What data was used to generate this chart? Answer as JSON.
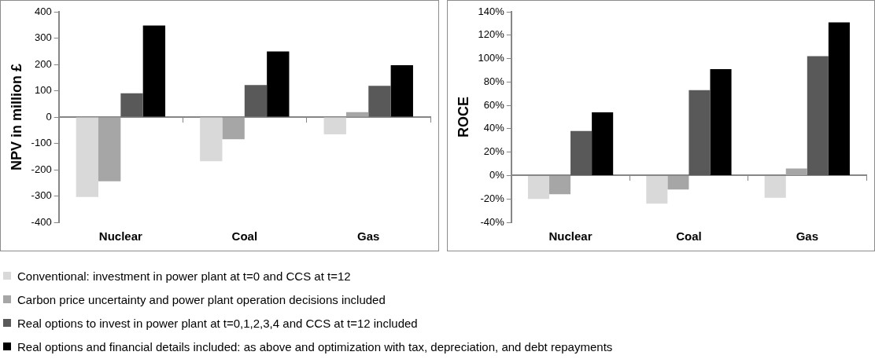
{
  "chart_data": [
    {
      "type": "bar",
      "ylabel": "NPV in million £",
      "categories": [
        "Nuclear",
        "Coal",
        "Gas"
      ],
      "ylim": [
        -400,
        400
      ],
      "yticks": [
        -400,
        -300,
        -200,
        -100,
        0,
        100,
        200,
        300,
        400
      ],
      "legend": "bottom",
      "series": [
        {
          "name": "Conventional: investment in power plant at t=0 and CCS at t=12",
          "color": "#d9d9d9",
          "values": [
            -304,
            -168,
            -66
          ]
        },
        {
          "name": "Carbon price uncertainty and power plant operation decisions included",
          "color": "#a6a6a6",
          "values": [
            -244,
            -84,
            19
          ]
        },
        {
          "name": "Real options to invest in power plant at t=0,1,2,3,4 and CCS at t=12 included",
          "color": "#595959",
          "values": [
            90,
            122,
            119
          ]
        },
        {
          "name": "Real options and financial details included: as above and optimization with tax, depreciation, and debt repayments",
          "color": "#000000",
          "values": [
            348,
            249,
            197
          ]
        }
      ]
    },
    {
      "type": "bar",
      "ylabel": "ROCE",
      "categories": [
        "Nuclear",
        "Coal",
        "Gas"
      ],
      "ylim": [
        -40,
        140
      ],
      "yticks": [
        {
          "value": -40,
          "label": "-40%"
        },
        {
          "value": -20,
          "label": "-20%"
        },
        {
          "value": 0,
          "label": "0%"
        },
        {
          "value": 20,
          "label": "20%"
        },
        {
          "value": 40,
          "label": "40%"
        },
        {
          "value": 60,
          "label": "60%"
        },
        {
          "value": 80,
          "label": "80%"
        },
        {
          "value": 100,
          "label": "100%"
        },
        {
          "value": 120,
          "label": "120%"
        },
        {
          "value": 140,
          "label": "140%"
        }
      ],
      "series": [
        {
          "color": "#d9d9d9",
          "values": [
            -20,
            -24,
            -19
          ]
        },
        {
          "color": "#a6a6a6",
          "values": [
            -16,
            -12,
            6
          ]
        },
        {
          "color": "#595959",
          "values": [
            38,
            73,
            102
          ]
        },
        {
          "color": "#000000",
          "values": [
            54,
            91,
            131
          ]
        }
      ]
    }
  ]
}
